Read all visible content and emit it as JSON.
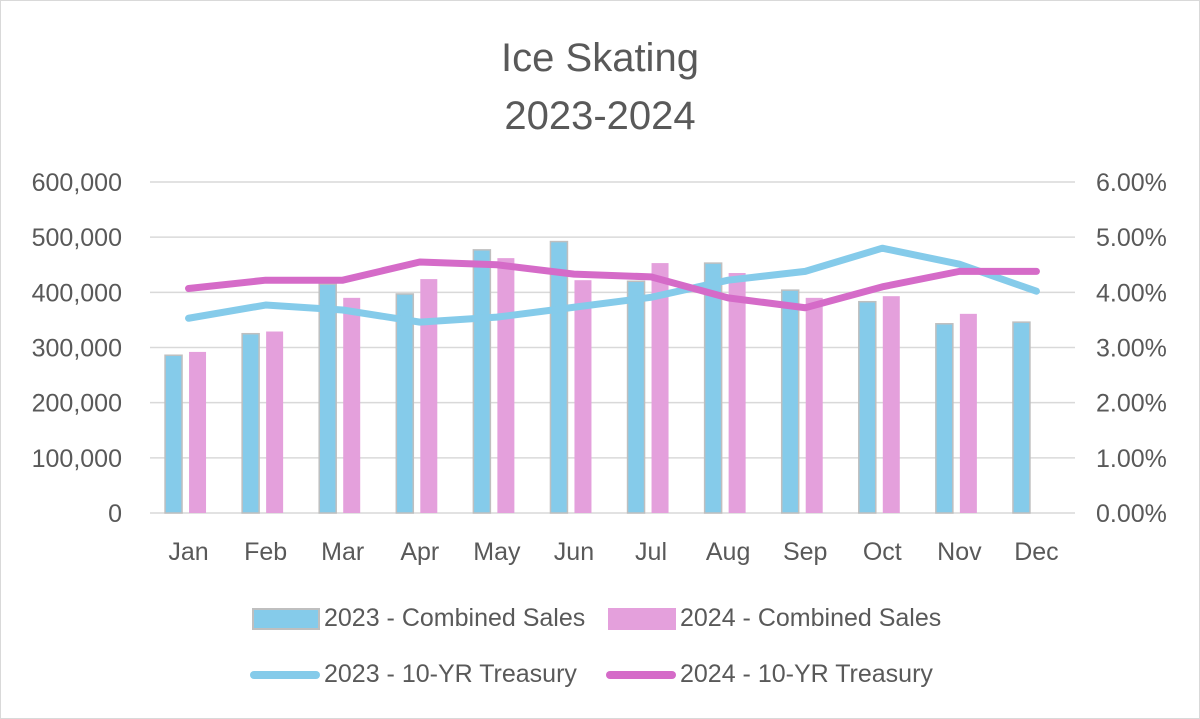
{
  "chart_data": {
    "type": "bar",
    "title": "Ice Skating",
    "subtitle": "2023-2024",
    "xlabel": "",
    "ylabel": "",
    "y2label": "",
    "categories": [
      "Jan",
      "Feb",
      "Mar",
      "Apr",
      "May",
      "Jun",
      "Jul",
      "Aug",
      "Sep",
      "Oct",
      "Nov",
      "Dec"
    ],
    "ylim": [
      0,
      600000
    ],
    "y2lim": [
      0,
      6
    ],
    "y_ticks": [
      "0",
      "100,000",
      "200,000",
      "300,000",
      "400,000",
      "500,000",
      "600,000"
    ],
    "y2_ticks": [
      "0.00%",
      "1.00%",
      "2.00%",
      "3.00%",
      "4.00%",
      "5.00%",
      "6.00%"
    ],
    "grid": true,
    "legend_position": "bottom",
    "series": [
      {
        "name": "2023 - Combined Sales",
        "type": "bar",
        "axis": "left",
        "color": "#85CBEA",
        "border": "#BFBFBF",
        "values": [
          286000,
          325000,
          415000,
          397000,
          477000,
          492000,
          420000,
          453000,
          404000,
          383000,
          343000,
          346000
        ]
      },
      {
        "name": "2024 - Combined Sales",
        "type": "bar",
        "axis": "left",
        "color": "#E4A0DC",
        "values": [
          292000,
          329000,
          390000,
          424000,
          462000,
          422000,
          453000,
          435000,
          390000,
          393000,
          361000,
          null
        ]
      },
      {
        "name": "2023 - 10-YR Treasury",
        "type": "line",
        "axis": "right",
        "color": "#85CBEA",
        "values": [
          3.53,
          3.77,
          3.68,
          3.46,
          3.55,
          3.73,
          3.91,
          4.22,
          4.38,
          4.8,
          4.51,
          4.02
        ]
      },
      {
        "name": "2024 - 10-YR Treasury",
        "type": "line",
        "axis": "right",
        "color": "#D56BC8",
        "values": [
          4.07,
          4.22,
          4.22,
          4.55,
          4.5,
          4.33,
          4.28,
          3.9,
          3.72,
          4.1,
          4.38,
          4.38
        ]
      }
    ]
  },
  "legend": {
    "items": [
      {
        "label": "2023 - Combined Sales"
      },
      {
        "label": "2024 - Combined Sales"
      },
      {
        "label": "2023 - 10-YR Treasury"
      },
      {
        "label": "2024 - 10-YR Treasury"
      }
    ]
  }
}
